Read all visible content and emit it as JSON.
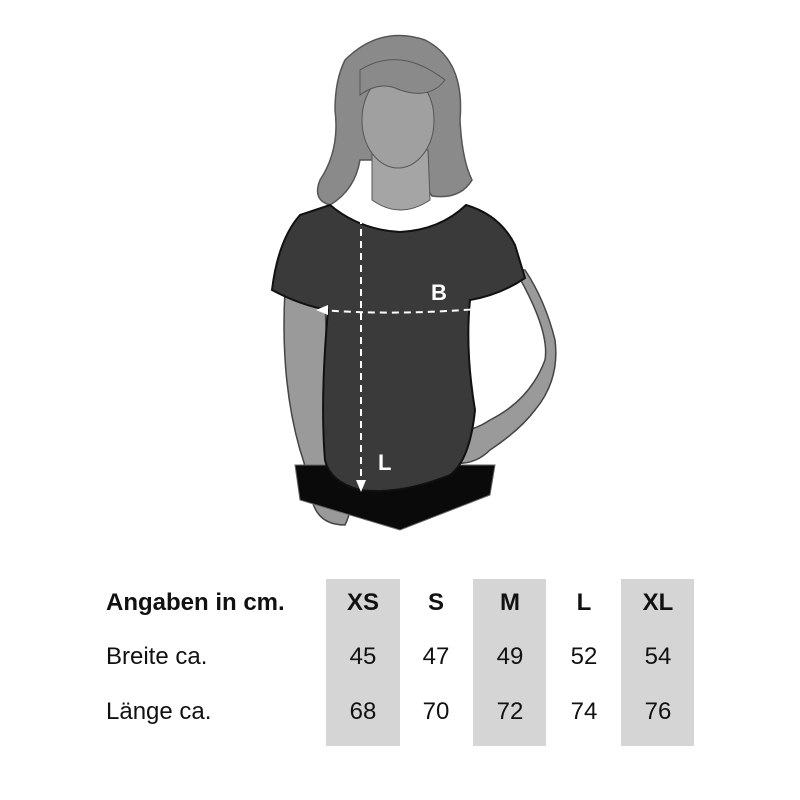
{
  "figure": {
    "breadth_marker": "B",
    "length_marker": "L",
    "colors": {
      "shirt": "#3a3a3a",
      "skin": "#9a9a9a",
      "hair": "#8a8a8a",
      "pants": "#0a0a0a",
      "column_shade": "#d5d5d6"
    }
  },
  "table": {
    "heading": "Angaben in cm.",
    "sizes": [
      "XS",
      "S",
      "M",
      "L",
      "XL"
    ],
    "rows": [
      {
        "label": "Breite ca.",
        "values": [
          "45",
          "47",
          "49",
          "52",
          "54"
        ]
      },
      {
        "label": "Länge ca.",
        "values": [
          "68",
          "70",
          "72",
          "74",
          "76"
        ]
      }
    ]
  }
}
